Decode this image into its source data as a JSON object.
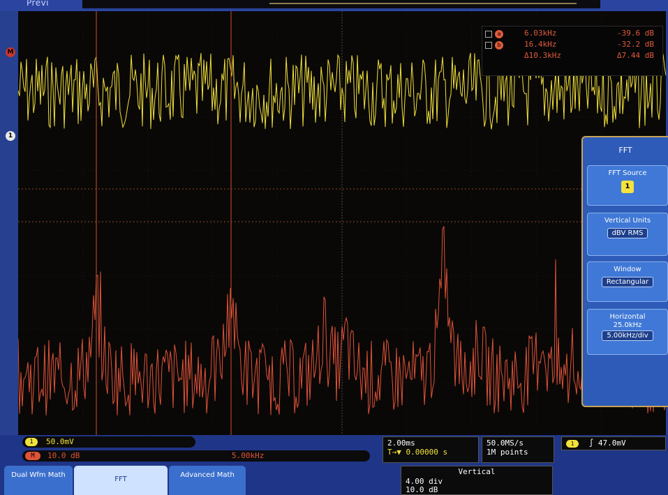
{
  "header": {
    "preview_label": "Previ"
  },
  "side_markers": {
    "math_marker": "M",
    "ch1_marker": "1"
  },
  "cursor_readout": {
    "cursor_a": {
      "label": "a",
      "freq": "6.03kHz",
      "level": "-39.6 dB"
    },
    "cursor_b": {
      "label": "b",
      "freq": "16.4kHz",
      "level": "-32.2 dB"
    },
    "delta": {
      "freq": "Δ10.3kHz",
      "level": "Δ7.44 dB"
    }
  },
  "fft_menu": {
    "title": "FFT",
    "items": [
      {
        "label": "FFT Source",
        "value": "1"
      },
      {
        "label": "Vertical Units",
        "value": "dBV RMS"
      },
      {
        "label": "Window",
        "value": "Rectangular"
      },
      {
        "label": "Horizontal",
        "value": "25.0kHz",
        "value2": "5.00kHz/div"
      }
    ]
  },
  "status": {
    "ch1": {
      "badge": "1",
      "scale": "50.0mV"
    },
    "math": {
      "badge": "M",
      "scale": "10.0 dB",
      "center_freq": "5.00kHz"
    },
    "timebase": {
      "scale": "2.00ms",
      "position": "T→▼ 0.00000 s"
    },
    "acquisition": {
      "sample_rate": "50.0MS/s",
      "record": "1M points"
    },
    "trigger": {
      "badge": "1",
      "slope": "∫",
      "level": "47.0mV"
    },
    "vertical": {
      "title": "Vertical",
      "pos": "4.00 div",
      "scale": "10.0 dB"
    }
  },
  "bottom_menu": {
    "dual_wfm": "Dual Wfm Math",
    "fft": "FFT",
    "advanced": "Advanced Math"
  },
  "colors": {
    "ch1": "#f2e23c",
    "math": "#e0533a",
    "menu": "#2d5bb7",
    "background": "#27408f"
  }
}
